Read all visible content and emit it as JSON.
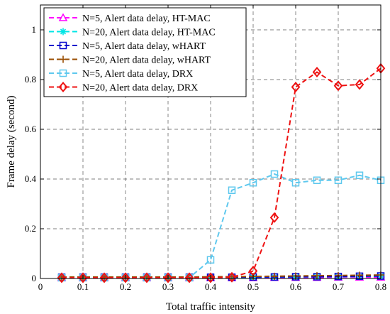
{
  "chart_data": {
    "type": "line",
    "title": "",
    "xlabel": "Total traffic intensity",
    "ylabel": "Frame delay (second)",
    "xlim": [
      0,
      0.8
    ],
    "ylim": [
      0,
      1.1
    ],
    "xticks": [
      0,
      0.1,
      0.2,
      0.3,
      0.4,
      0.5,
      0.6,
      0.7,
      0.8
    ],
    "xtick_labels": [
      "0",
      "0.1",
      "0.2",
      "0.3",
      "0.4",
      "0.5",
      "0.6",
      "0.7",
      "0.8"
    ],
    "yticks": [
      0,
      0.2,
      0.4,
      0.6,
      0.8,
      1
    ],
    "ytick_labels": [
      "0",
      "0.2",
      "0.4",
      "0.6",
      "0.8",
      "1"
    ],
    "grid": true,
    "legend_position": "top-left",
    "x": [
      0.05,
      0.1,
      0.15,
      0.2,
      0.25,
      0.3,
      0.35,
      0.4,
      0.45,
      0.5,
      0.55,
      0.6,
      0.65,
      0.7,
      0.75,
      0.8
    ],
    "series": [
      {
        "name": "N=5, Alert data delay, HT-MAC",
        "color": "#ff00ff",
        "marker": "triangle",
        "values": [
          0.002,
          0.002,
          0.002,
          0.002,
          0.002,
          0.002,
          0.002,
          0.003,
          0.003,
          0.003,
          0.004,
          0.004,
          0.004,
          0.005,
          0.005,
          0.005
        ]
      },
      {
        "name": "N=20, Alert data delay, HT-MAC",
        "color": "#00e5e5",
        "marker": "star",
        "values": [
          0.003,
          0.003,
          0.003,
          0.003,
          0.003,
          0.003,
          0.003,
          0.004,
          0.004,
          0.005,
          0.006,
          0.006,
          0.007,
          0.007,
          0.008,
          0.009
        ]
      },
      {
        "name": "N=5, Alert data delay, wHART",
        "color": "#0000cc",
        "marker": "square",
        "values": [
          0.005,
          0.005,
          0.005,
          0.005,
          0.005,
          0.005,
          0.005,
          0.005,
          0.005,
          0.006,
          0.006,
          0.007,
          0.007,
          0.008,
          0.009,
          0.01
        ]
      },
      {
        "name": "N=20, Alert data delay, wHART",
        "color": "#994c00",
        "marker": "plus",
        "values": [
          0.006,
          0.006,
          0.006,
          0.006,
          0.006,
          0.006,
          0.006,
          0.007,
          0.007,
          0.008,
          0.009,
          0.01,
          0.011,
          0.012,
          0.013,
          0.014
        ]
      },
      {
        "name": "N=5, Alert data delay, DRX",
        "color": "#5ec8ee",
        "marker": "square",
        "values": [
          0.003,
          0.003,
          0.003,
          0.003,
          0.003,
          0.003,
          0.003,
          0.075,
          0.355,
          0.385,
          0.42,
          0.385,
          0.395,
          0.395,
          0.415,
          0.395
        ]
      },
      {
        "name": "N=20, Alert data delay, DRX",
        "color": "#ee1111",
        "marker": "diamond",
        "values": [
          0.003,
          0.003,
          0.003,
          0.003,
          0.003,
          0.003,
          0.003,
          0.003,
          0.005,
          0.03,
          0.245,
          0.77,
          0.83,
          0.775,
          0.78,
          0.845
        ]
      }
    ]
  }
}
